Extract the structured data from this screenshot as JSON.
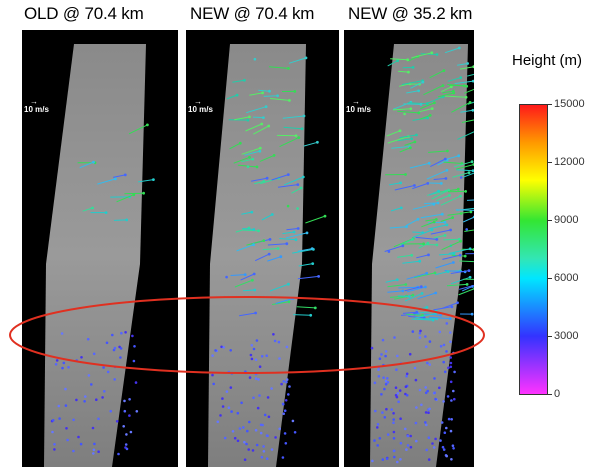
{
  "panels": [
    {
      "title": "OLD @ 70.4 km",
      "scale_label": "10 m/s"
    },
    {
      "title": "NEW @ 70.4 km",
      "scale_label": "10 m/s"
    },
    {
      "title": "NEW @ 35.2 km",
      "scale_label": "10 m/s"
    }
  ],
  "colorbar": {
    "title": "Height (m)",
    "ticks": [
      "15000",
      "12000",
      "9000",
      "6000",
      "3000",
      "0"
    ],
    "colors": [
      "#ff1a1a",
      "#ff9900",
      "#ffff00",
      "#33e633",
      "#00e6ff",
      "#3333ff",
      "#ff33ff"
    ]
  },
  "highlight_color": "#e03020"
}
